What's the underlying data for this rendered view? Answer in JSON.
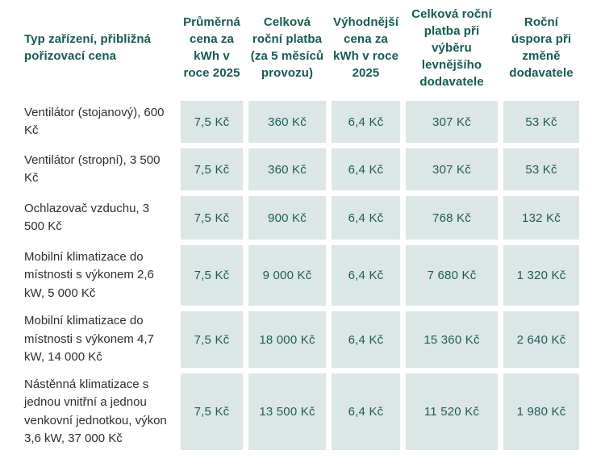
{
  "colors": {
    "background": "#ffffff",
    "cell_background": "#dce6e5",
    "accent_text": "#165a51",
    "label_text": "#2e2e2e"
  },
  "chart_data": {
    "type": "table",
    "title": "",
    "columns": [
      "Typ zařízení, přibližná pořizovací cena",
      "Průměrná cena za kWh v roce 2025",
      "Celková roční platba (za 5 měsíců provozu)",
      "Výhodnější cena za kWh v roce 2025",
      "Celková roční platba při výběru levnějšího dodavatele",
      "Roční úspora při změně dodavatele"
    ],
    "rows": [
      {
        "label": "Ventilátor (stojanový), 600 Kč",
        "values": [
          "7,5 Kč",
          "360 Kč",
          "6,4 Kč",
          "307 Kč",
          "53 Kč"
        ]
      },
      {
        "label": "Ventilátor (stropní), 3 500 Kč",
        "values": [
          "7,5 Kč",
          "360 Kč",
          "6,4 Kč",
          "307 Kč",
          "53 Kč"
        ]
      },
      {
        "label": "Ochlazovač vzduchu, 3 500 Kč",
        "values": [
          "7,5 Kč",
          "900 Kč",
          "6,4 Kč",
          "768 Kč",
          "132 Kč"
        ]
      },
      {
        "label": "Mobilní klimatizace do místnosti s výkonem 2,6 kW, 5 000 Kč",
        "values": [
          "7,5 Kč",
          "9 000 Kč",
          "6,4 Kč",
          "7 680 Kč",
          "1 320 Kč"
        ]
      },
      {
        "label": "Mobilní klimatizace do místnosti s výkonem 4,7 kW, 14 000 Kč",
        "values": [
          "7,5 Kč",
          "18 000 Kč",
          "6,4 Kč",
          "15 360 Kč",
          "2 640 Kč"
        ]
      },
      {
        "label": "Nástěnná klimatizace s jednou vnitřní a jednou venkovní jednotkou, výkon 3,6 kW, 37 000 Kč",
        "values": [
          "7,5 Kč",
          "13 500 Kč",
          "6,4 Kč",
          "11 520 Kč",
          "1 980 Kč"
        ]
      }
    ]
  }
}
